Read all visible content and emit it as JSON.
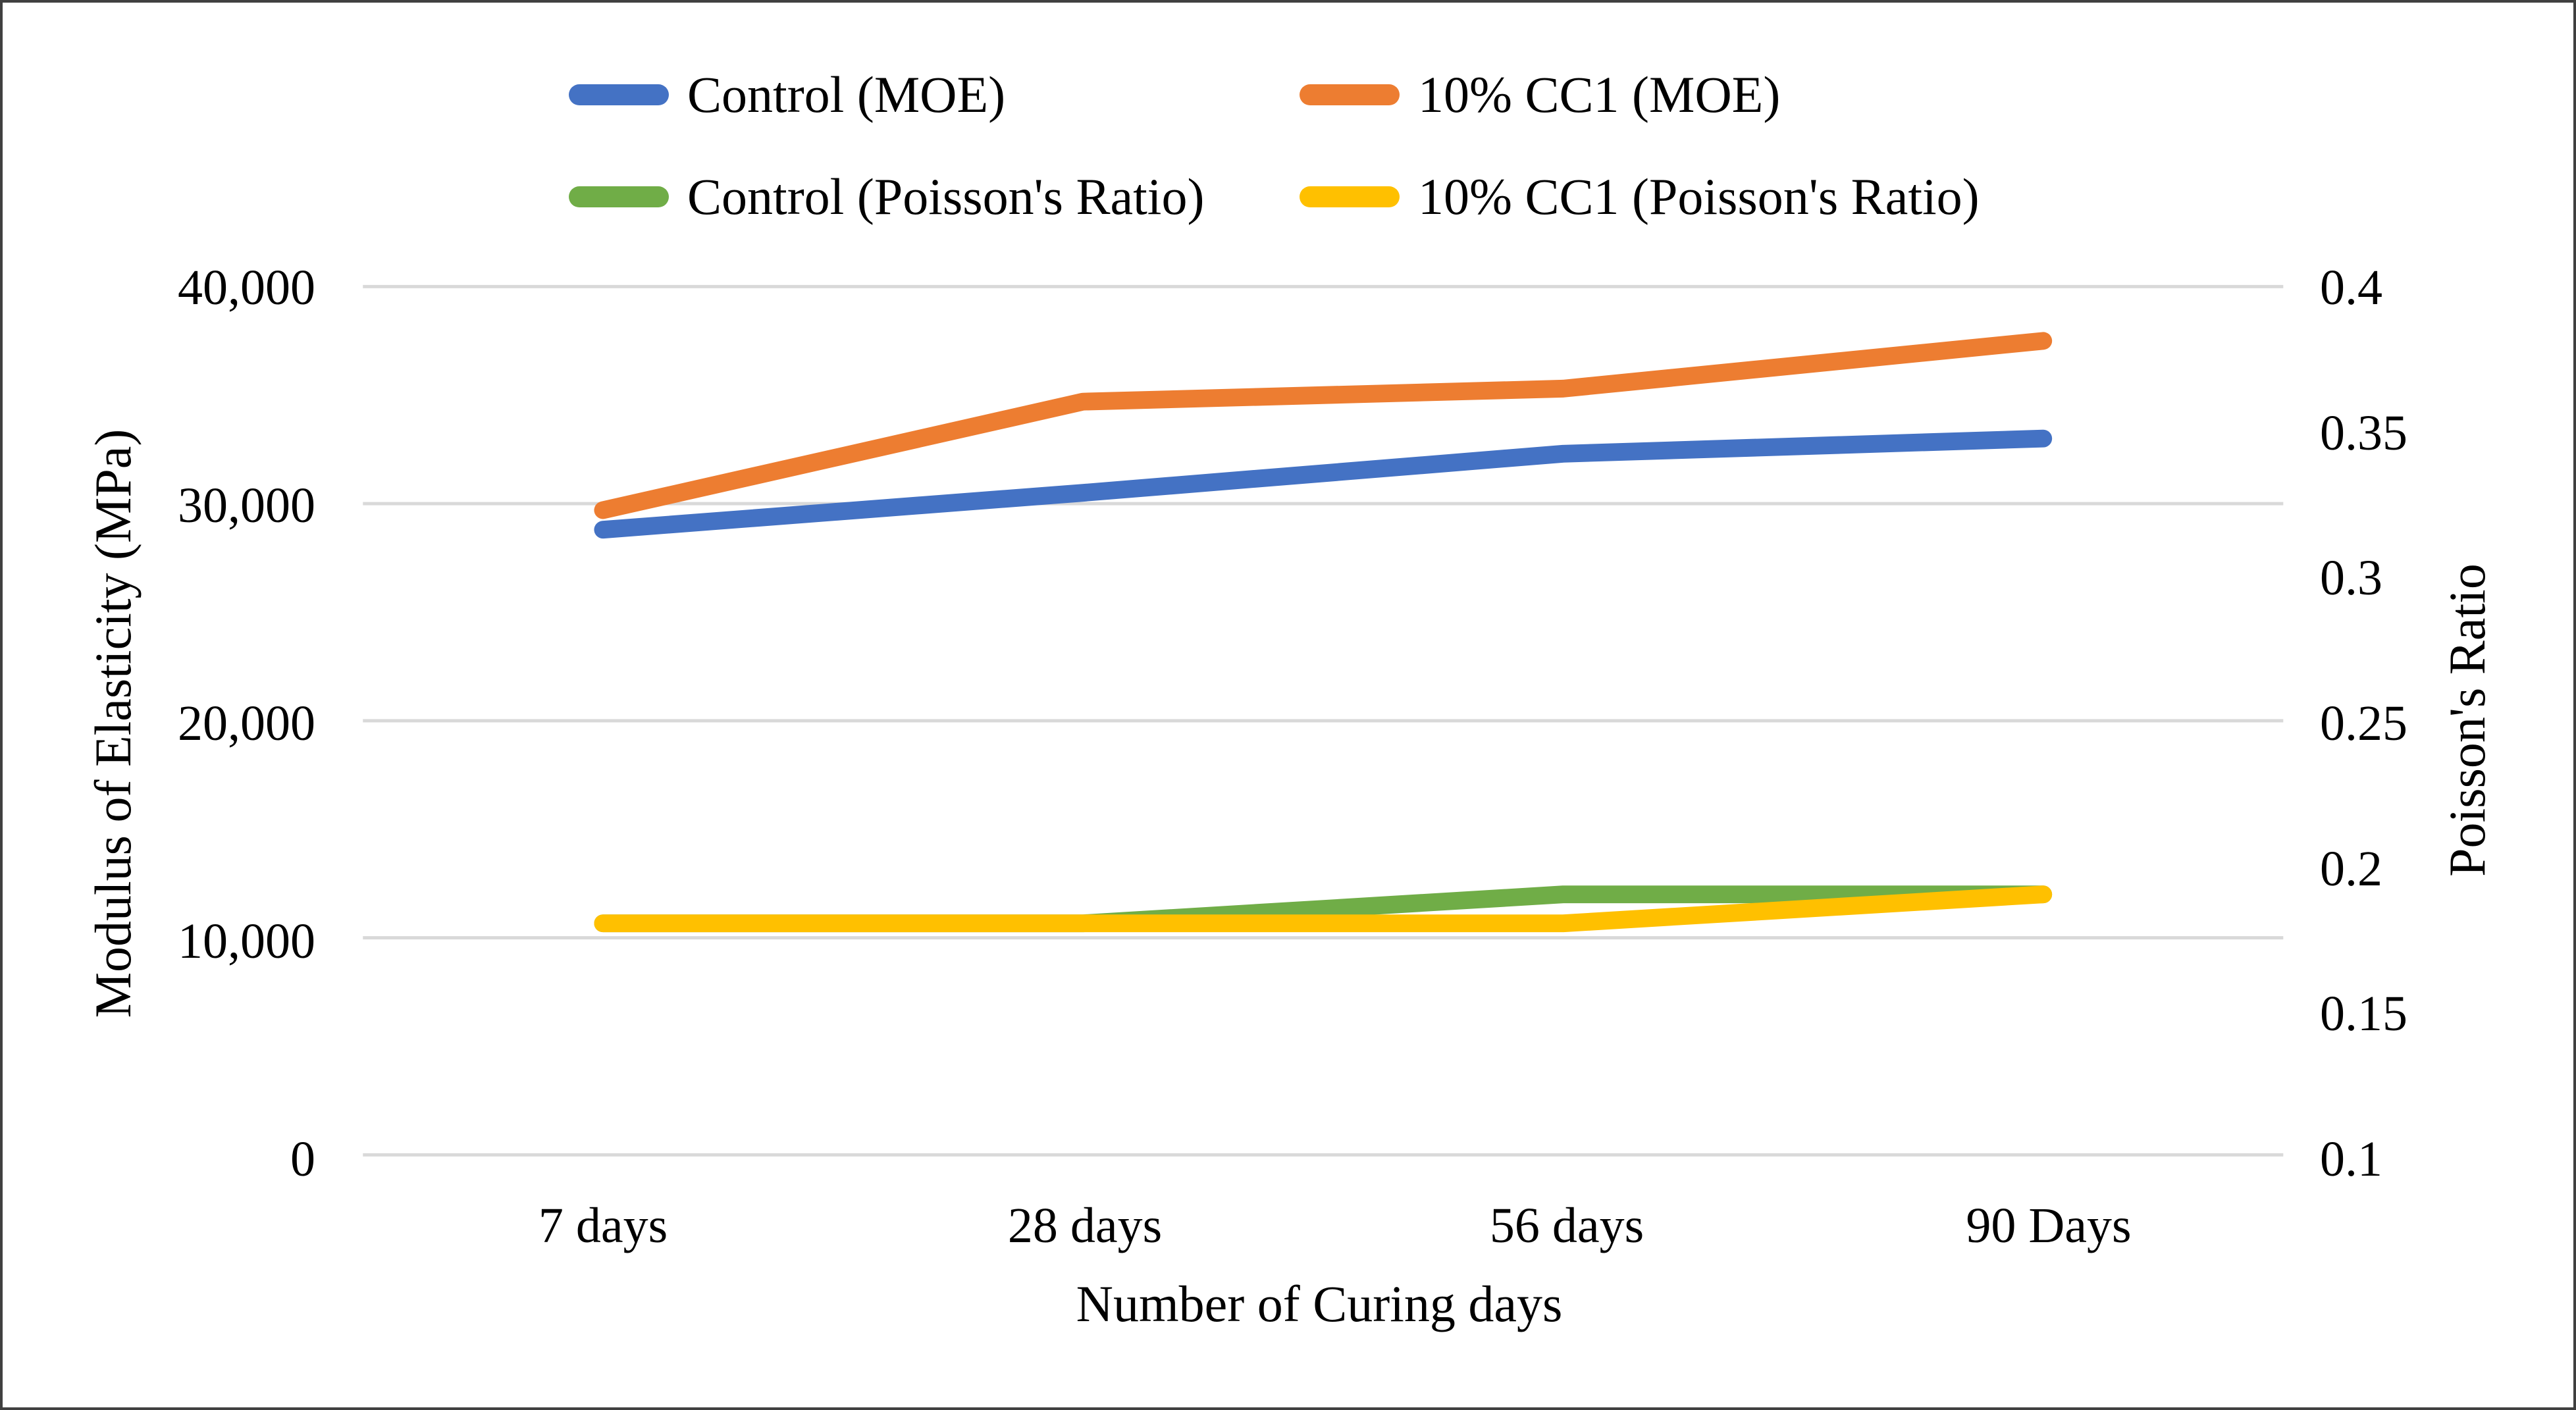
{
  "colors": {
    "grid": "#D9D9D9",
    "text": "#000000",
    "frame": "#404040",
    "blue": "#4472C4",
    "orange": "#ED7D31",
    "green": "#70AD47",
    "yellow": "#FFC000"
  },
  "legend": {
    "items": [
      {
        "label": "Control (MOE)",
        "color": "#4472C4"
      },
      {
        "label": "10% CC1 (MOE)",
        "color": "#ED7D31"
      },
      {
        "label": "Control (Poisson's Ratio)",
        "color": "#70AD47"
      },
      {
        "label": "10% CC1 (Poisson's Ratio)",
        "color": "#FFC000"
      }
    ]
  },
  "axes": {
    "left": {
      "title": "Modulus of Elasticity (MPa)",
      "tick_labels": [
        "40,000",
        "30,000",
        "20,000",
        "10,000",
        "0"
      ]
    },
    "right": {
      "title": "Poisson's Ratio",
      "tick_labels": [
        "0.4",
        "0.35",
        "0.3",
        "0.25",
        "0.2",
        "0.15",
        "0.1"
      ]
    },
    "x": {
      "title": "Number of Curing days",
      "categories": [
        "7 days",
        "28 days",
        "56 days",
        "90 Days"
      ]
    }
  },
  "chart_data": {
    "type": "line",
    "categories": [
      "7 days",
      "28 days",
      "56 days",
      "90 Days"
    ],
    "series": [
      {
        "name": "Control (MOE)",
        "axis": "left",
        "color": "#4472C4",
        "values": [
          28800,
          30500,
          32300,
          33000
        ]
      },
      {
        "name": "10% CC1 (MOE)",
        "axis": "left",
        "color": "#ED7D31",
        "values": [
          29700,
          34700,
          35300,
          37500
        ]
      },
      {
        "name": "Control (Poisson's Ratio)",
        "axis": "right",
        "color": "#70AD47",
        "values": [
          0.18,
          0.18,
          0.19,
          0.19
        ]
      },
      {
        "name": "10% CC1 (Poisson's Ratio)",
        "axis": "right",
        "color": "#FFC000",
        "values": [
          0.18,
          0.18,
          0.18,
          0.19
        ]
      }
    ],
    "left_ylim": [
      0,
      40000
    ],
    "right_ylim": [
      0.1,
      0.4
    ],
    "x_title": "Number of Curing days",
    "left_ylabel": "Modulus of Elasticity (MPa)",
    "right_ylabel": "Poisson's Ratio",
    "grid": "horizontal",
    "legend_position": "top"
  }
}
